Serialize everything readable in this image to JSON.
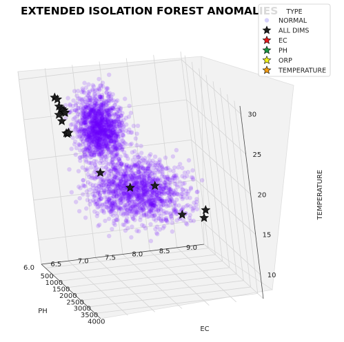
{
  "chart_data": {
    "type": "scatter",
    "projection": "3d",
    "title": "EXTENDED ISOLATION FOREST ANOMALIES",
    "x_axis": {
      "label": "EC",
      "range": [
        200,
        4400
      ],
      "ticks": [
        "500",
        "1000",
        "1500",
        "2000",
        "2500",
        "3000",
        "3500",
        "4000"
      ]
    },
    "y_axis": {
      "label": "PH",
      "range": [
        6.0,
        9.0
      ],
      "ticks": [
        "6.0",
        "6.5",
        "7.0",
        "7.5",
        "8.0",
        "8.5",
        "9.0"
      ]
    },
    "z_axis": {
      "label": "TEMPERATURE",
      "range": [
        7,
        31
      ],
      "ticks": [
        "10",
        "15",
        "20",
        "25",
        "30"
      ]
    },
    "grid": true,
    "legend": {
      "title": "TYPE",
      "placement": "top-right",
      "entries": [
        {
          "label": "NORMAL",
          "marker": "dot",
          "color": "#8a7cf5"
        },
        {
          "label": "ALL DIMS",
          "marker": "star",
          "color": "#1f1f1f"
        },
        {
          "label": "EC",
          "marker": "star",
          "color": "#e41a1c"
        },
        {
          "label": "PH",
          "marker": "star",
          "color": "#1a9641"
        },
        {
          "label": "ORP",
          "marker": "star",
          "color": "#f2f21a"
        },
        {
          "label": "TEMPERATURE",
          "marker": "star",
          "color": "#f39c12"
        }
      ]
    },
    "series": [
      {
        "name": "NORMAL",
        "color": "#6a00ff",
        "clusters": [
          {
            "ec": [
              600,
              1400
            ],
            "ph": [
              6.7,
              7.6
            ],
            "temp": [
              20,
              29
            ],
            "count": 1100
          },
          {
            "ec": [
              400,
              1300
            ],
            "ph": [
              6.8,
              8.6
            ],
            "temp": [
              12,
              20
            ],
            "count": 1100
          },
          {
            "ec": [
              1200,
              2400
            ],
            "ph": [
              6.6,
              7.6
            ],
            "temp": [
              22,
              29
            ],
            "count": 260
          },
          {
            "ec": [
              900,
              2000
            ],
            "ph": [
              7.2,
              8.8
            ],
            "temp": [
              11,
              20
            ],
            "count": 260
          }
        ]
      },
      {
        "name": "ALL DIMS",
        "color": "#1f1f1f",
        "points": [
          {
            "ec": 2000,
            "ph": 6.2,
            "temp": 30.5
          },
          {
            "ec": 2200,
            "ph": 6.2,
            "temp": 30.6
          },
          {
            "ec": 2700,
            "ph": 6.1,
            "temp": 30.6
          },
          {
            "ec": 2900,
            "ph": 6.1,
            "temp": 30.6
          },
          {
            "ec": 3050,
            "ph": 6.1,
            "temp": 30.7
          },
          {
            "ec": 3150,
            "ph": 6.05,
            "temp": 30.8
          },
          {
            "ec": 3250,
            "ph": 6.05,
            "temp": 30.8
          },
          {
            "ec": 3350,
            "ph": 6.05,
            "temp": 30.9
          },
          {
            "ec": 2600,
            "ph": 6.1,
            "temp": 29.4
          },
          {
            "ec": 3000,
            "ph": 6.05,
            "temp": 29.3
          },
          {
            "ec": 1700,
            "ph": 6.4,
            "temp": 25.4
          },
          {
            "ec": 1800,
            "ph": 6.4,
            "temp": 25.5
          },
          {
            "ec": 1900,
            "ph": 6.4,
            "temp": 25.8
          },
          {
            "ec": 1400,
            "ph": 7.0,
            "temp": 19.5
          },
          {
            "ec": 800,
            "ph": 8.1,
            "temp": 16
          },
          {
            "ec": 1000,
            "ph": 7.6,
            "temp": 16.5
          },
          {
            "ec": 500,
            "ph": 8.6,
            "temp": 11.5
          },
          {
            "ec": 900,
            "ph": 8.9,
            "temp": 11.5
          },
          {
            "ec": 1100,
            "ph": 8.9,
            "temp": 12.8
          }
        ]
      }
    ]
  }
}
